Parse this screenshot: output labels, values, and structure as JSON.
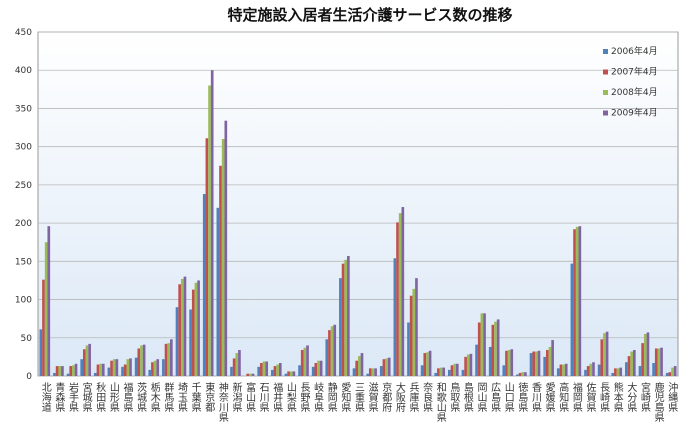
{
  "chart_data": {
    "type": "bar",
    "title": "特定施設入居者生活介護サービス数の推移",
    "categories": [
      "北海道",
      "青森県",
      "岩手県",
      "宮城県",
      "秋田県",
      "山形県",
      "福島県",
      "茨城県",
      "栃木県",
      "群馬県",
      "埼玉県",
      "千葉県",
      "東京都",
      "神奈川県",
      "新潟県",
      "富山県",
      "石川県",
      "福井県",
      "山梨県",
      "長野県",
      "岐阜県",
      "静岡県",
      "愛知県",
      "三重県",
      "滋賀県",
      "京都府",
      "大阪府",
      "兵庫県",
      "奈良県",
      "和歌山県",
      "鳥取県",
      "島根県",
      "岡山県",
      "広島県",
      "山口県",
      "徳島県",
      "香川県",
      "愛媛県",
      "高知県",
      "福岡県",
      "佐賀県",
      "長崎県",
      "熊本県",
      "大分県",
      "宮崎県",
      "鹿児島県",
      "沖縄県"
    ],
    "series": [
      {
        "name": "2006年4月",
        "color": "#4f81bd",
        "values": [
          61,
          4,
          3,
          22,
          4,
          11,
          12,
          24,
          8,
          22,
          90,
          87,
          238,
          220,
          12,
          0,
          12,
          8,
          3,
          14,
          12,
          48,
          128,
          10,
          3,
          13,
          154,
          70,
          14,
          4,
          8,
          8,
          41,
          38,
          14,
          2,
          30,
          25,
          10,
          147,
          8,
          15,
          4,
          18,
          13,
          17,
          4
        ]
      },
      {
        "name": "2007年4月",
        "color": "#c0504d",
        "values": [
          126,
          13,
          13,
          35,
          15,
          20,
          15,
          36,
          18,
          42,
          120,
          113,
          311,
          275,
          23,
          3,
          17,
          13,
          6,
          34,
          17,
          60,
          147,
          20,
          10,
          22,
          201,
          105,
          30,
          10,
          14,
          25,
          70,
          67,
          33,
          4,
          32,
          34,
          15,
          192,
          13,
          48,
          10,
          26,
          43,
          36,
          5
        ]
      },
      {
        "name": "2008年4月",
        "color": "#9bbb59",
        "values": [
          175,
          13,
          14,
          40,
          16,
          22,
          22,
          40,
          20,
          43,
          127,
          122,
          380,
          310,
          30,
          3,
          19,
          15,
          6,
          37,
          20,
          65,
          152,
          26,
          10,
          23,
          213,
          114,
          31,
          11,
          16,
          28,
          82,
          71,
          34,
          5,
          32,
          38,
          15,
          195,
          16,
          56,
          10,
          32,
          55,
          36,
          11
        ]
      },
      {
        "name": "2009年4月",
        "color": "#8064a2",
        "values": [
          196,
          13,
          16,
          42,
          16,
          22,
          23,
          41,
          22,
          48,
          130,
          125,
          400,
          334,
          34,
          3,
          19,
          17,
          6,
          40,
          20,
          67,
          157,
          30,
          10,
          24,
          221,
          128,
          33,
          11,
          16,
          29,
          82,
          74,
          35,
          5,
          33,
          47,
          16,
          196,
          18,
          58,
          11,
          34,
          57,
          37,
          13
        ]
      }
    ],
    "ylim": [
      0,
      450
    ],
    "yticks": [
      0,
      50,
      100,
      150,
      200,
      250,
      300,
      350,
      400,
      450
    ],
    "grid": true
  }
}
